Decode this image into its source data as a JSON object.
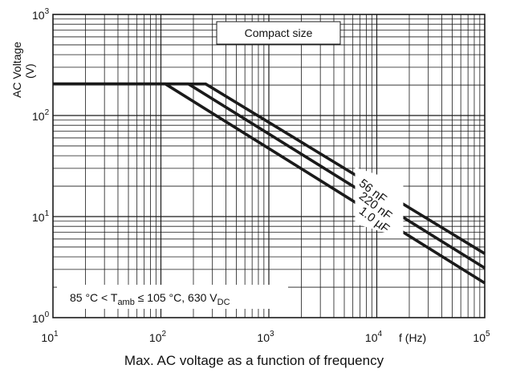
{
  "caption": "Max. AC voltage as a function of frequency",
  "chart_data": {
    "type": "line",
    "x_scale": "log",
    "y_scale": "log",
    "xlim": [
      10,
      100000
    ],
    "ylim": [
      1,
      1000
    ],
    "xlabel": "f (Hz)",
    "ylabel": "AC Voltage (V)",
    "ylabel_lines": [
      "AC Voltage",
      "(V)"
    ],
    "grid": true,
    "x_ticks": [
      {
        "base": "10",
        "exp": "1"
      },
      {
        "base": "10",
        "exp": "2"
      },
      {
        "base": "10",
        "exp": "3"
      },
      {
        "base": "10",
        "exp": "4"
      },
      {
        "base": "10",
        "exp": "5"
      }
    ],
    "y_ticks": [
      {
        "base": "10",
        "exp": "0"
      },
      {
        "base": "10",
        "exp": "1"
      },
      {
        "base": "10",
        "exp": "2"
      },
      {
        "base": "10",
        "exp": "3"
      }
    ],
    "annotation_title": "Compact size",
    "annotation_condition": {
      "pre": "85 °C < T",
      "sub1": "amb",
      "mid": " ≤ 105 °C, 630 V",
      "sub2": "DC"
    },
    "series": [
      {
        "name": "56 nF",
        "x": [
          10,
          260,
          100000
        ],
        "y": [
          205,
          205,
          4.3
        ]
      },
      {
        "name": "220 nF",
        "x": [
          10,
          180,
          100000
        ],
        "y": [
          205,
          205,
          3.1
        ]
      },
      {
        "name": "1.0 µF",
        "x": [
          10,
          110,
          100000
        ],
        "y": [
          205,
          205,
          2.2
        ]
      }
    ],
    "colors": {
      "line": "#1a1a1a",
      "grid": "#1a1a1a",
      "background": "#ffffff"
    }
  }
}
